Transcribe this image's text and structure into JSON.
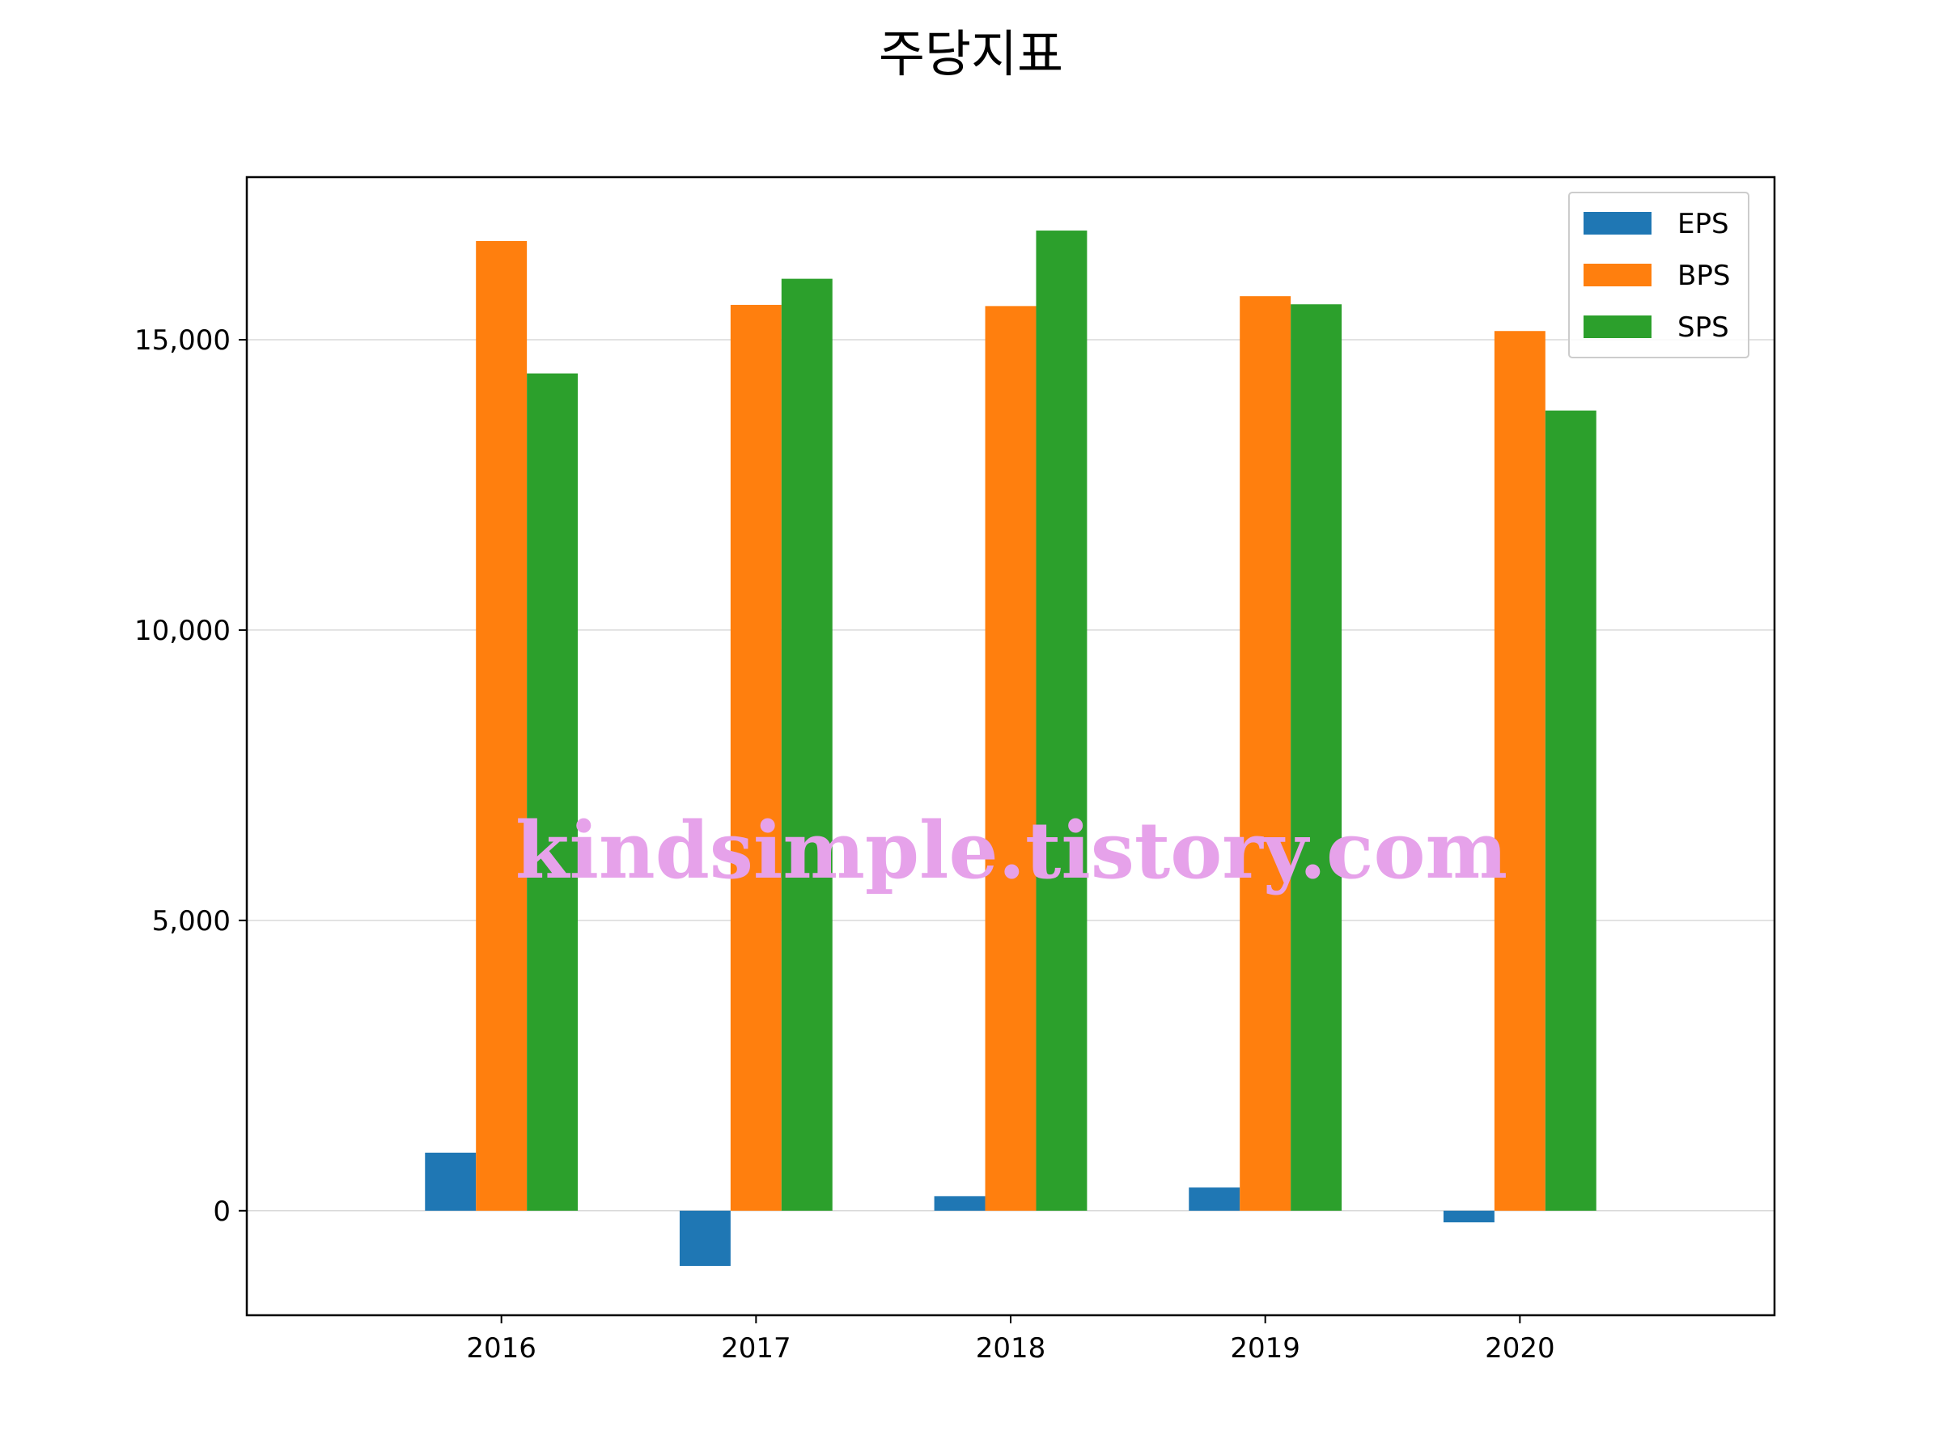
{
  "chart_data": {
    "type": "bar",
    "title": "주당지표",
    "xlabel": "",
    "ylabel": "",
    "categories": [
      "2016",
      "2017",
      "2018",
      "2019",
      "2020"
    ],
    "series": [
      {
        "name": "EPS",
        "values": [
          1000,
          -950,
          250,
          400,
          -200
        ],
        "color": "#1f77b4"
      },
      {
        "name": "BPS",
        "values": [
          16700,
          15600,
          15580,
          15750,
          15150
        ],
        "color": "#ff7f0e"
      },
      {
        "name": "SPS",
        "values": [
          14420,
          16050,
          16880,
          15610,
          13780
        ],
        "color": "#2ca02c"
      }
    ],
    "ylim": [
      -1800,
      17800
    ],
    "yticks": [
      0,
      5000,
      10000,
      15000
    ],
    "ytick_labels": [
      "0",
      "5,000",
      "10,000",
      "15,000"
    ],
    "grid": "horizontal",
    "legend_position": "top-right"
  },
  "watermark": "kindsimple.tistory.com"
}
